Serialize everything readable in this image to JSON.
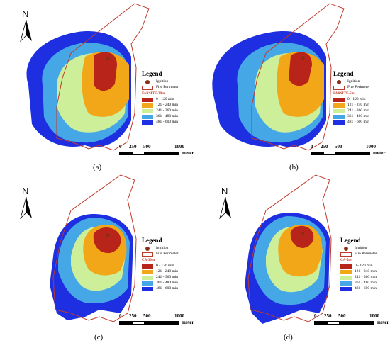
{
  "panels": [
    {
      "id": "a",
      "caption": "(a)",
      "method": "FARSITE-30m"
    },
    {
      "id": "b",
      "caption": "(b)",
      "method": "FARSITE-5m"
    },
    {
      "id": "c",
      "caption": "(c)",
      "method": "CA-30m"
    },
    {
      "id": "d",
      "caption": "(d)",
      "method": "CA-5m"
    }
  ],
  "north": "N",
  "legend": {
    "title": "Legend",
    "ignition": "Ignition",
    "perimeter": "Fire Perimeter",
    "classes": [
      {
        "label": "0 - 120 min",
        "color": "#b8231a"
      },
      {
        "label": "121 - 240 min",
        "color": "#f2a719"
      },
      {
        "label": "241 - 360 min",
        "color": "#cdef9a"
      },
      {
        "label": "361 - 480 min",
        "color": "#45a7e6"
      },
      {
        "label": "481 - 600 min",
        "color": "#1d2fe0"
      }
    ]
  },
  "scale": {
    "ticks": [
      "0",
      "250",
      "500",
      "1000"
    ],
    "unit": "meter"
  },
  "colors": {
    "perimeter": "#c0392b",
    "ignition": "#8b2e16"
  }
}
